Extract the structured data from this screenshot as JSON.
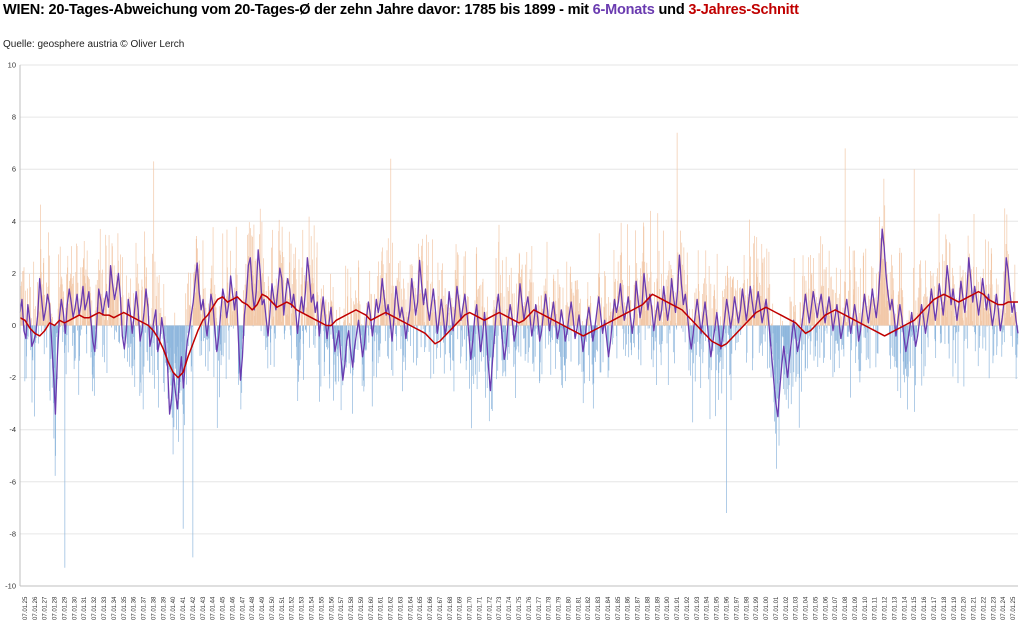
{
  "title": {
    "part1": "WIEN: 20-Tages-Abweichung vom 20-Tages-Ø der zehn Jahre davor: 1785 bis 1899 - mit ",
    "part2": "6-Monats",
    "part3": " und ",
    "part4": "3-Jahres-Schnitt"
  },
  "source": "Quelle: geosphere austria © Oliver Lerch",
  "colors": {
    "positive_bars": "#f2c8a8",
    "negative_bars": "#8fb7dd",
    "six_month_line": "#6a3bb0",
    "three_year_line": "#c00000",
    "grid": "#e6e6e6"
  },
  "chart_data": {
    "type": "bar",
    "title": "WIEN: 20-Tages-Abweichung vom 20-Tages-Ø der zehn Jahre davor: 1785 bis 1899 - mit 6-Monats und 3-Jahres-Schnitt",
    "ylim": [
      -10,
      10
    ],
    "yticks": [
      10,
      8,
      6,
      4,
      2,
      0,
      -2,
      -4,
      -6,
      -8,
      -10
    ],
    "grid": true,
    "x_labels": [
      "07.01.25",
      "07.01.26",
      "07.01.27",
      "07.01.28",
      "07.01.29",
      "07.01.30",
      "07.01.31",
      "07.01.32",
      "07.01.33",
      "07.01.34",
      "07.01.35",
      "07.01.36",
      "07.01.37",
      "07.01.38",
      "07.01.39",
      "07.01.40",
      "07.01.41",
      "07.01.42",
      "07.01.43",
      "07.01.44",
      "07.01.45",
      "07.01.46",
      "07.01.47",
      "07.01.48",
      "07.01.49",
      "07.01.50",
      "07.01.51",
      "07.01.52",
      "07.01.53",
      "07.01.54",
      "07.01.55",
      "07.01.56",
      "07.01.57",
      "07.01.58",
      "07.01.59",
      "07.01.60",
      "07.01.61",
      "07.01.62",
      "07.01.63",
      "07.01.64",
      "07.01.65",
      "07.01.66",
      "07.01.67",
      "07.01.68",
      "07.01.69",
      "07.01.70",
      "07.01.71",
      "07.01.72",
      "07.01.73",
      "07.01.74",
      "07.01.75",
      "07.01.76",
      "07.01.77",
      "07.01.78",
      "07.01.79",
      "07.01.80",
      "07.01.81",
      "07.01.82",
      "07.01.83",
      "07.01.84",
      "07.01.85",
      "07.01.86",
      "07.01.87",
      "07.01.88",
      "07.01.89",
      "07.01.90",
      "07.01.91",
      "07.01.92",
      "07.01.93",
      "07.01.94",
      "07.01.95",
      "07.01.96",
      "07.01.97",
      "07.01.98",
      "07.01.99",
      "07.01.00",
      "07.01.01",
      "07.01.02",
      "07.01.03",
      "07.01.04",
      "07.01.05",
      "07.01.06",
      "07.01.07",
      "07.01.08",
      "07.01.09",
      "07.01.10",
      "07.01.11",
      "07.01.12",
      "07.01.13",
      "07.01.14",
      "07.01.15",
      "07.01.16",
      "07.01.17",
      "07.01.18",
      "07.01.19",
      "07.01.20",
      "07.01.21",
      "07.01.22",
      "07.01.23",
      "07.01.24",
      "07.01.25"
    ],
    "series": [
      {
        "name": "6-Monats",
        "type": "line",
        "values": [
          0.5,
          1.0,
          -0.2,
          -0.5,
          0.8,
          0.2,
          -0.8,
          -0.6,
          -0.3,
          0.4,
          1.8,
          1.0,
          0.2,
          0.6,
          1.2,
          0.8,
          -0.5,
          -1.8,
          -3.4,
          -1.2,
          0.3,
          1.0,
          0.5,
          -0.3,
          0.8,
          1.4,
          0.9,
          0.3,
          0.7,
          1.2,
          0.4,
          0.8,
          1.5,
          0.6,
          0.9,
          1.3,
          0.2,
          -0.6,
          -1.0,
          0.1,
          1.4,
          1.0,
          0.4,
          0.9,
          1.3,
          0.7,
          2.3,
          1.6,
          1.0,
          1.4,
          2.0,
          1.1,
          -0.4,
          -0.9,
          -0.2,
          1.0,
          0.5,
          -0.3,
          0.4,
          1.3,
          0.6,
          -0.6,
          -0.2,
          0.5,
          1.4,
          0.7,
          -0.8,
          -0.4,
          0.2,
          0.6,
          -1.0,
          -0.6,
          0.3,
          -0.3,
          -0.9,
          -1.6,
          -3.4,
          -2.8,
          -1.8,
          -2.6,
          -3.2,
          -2.0,
          -1.2,
          -2.4,
          -1.4,
          -0.6,
          -0.2,
          0.4,
          0.9,
          1.7,
          2.4,
          1.3,
          0.6,
          1.0,
          0.2,
          -0.4,
          0.3,
          1.2,
          0.8,
          -0.2,
          -1.0,
          -0.4,
          0.5,
          1.4,
          1.0,
          0.3,
          0.8,
          1.9,
          1.2,
          0.6,
          1.3,
          -0.6,
          -2.1,
          -1.2,
          0.4,
          1.1,
          2.3,
          2.6,
          1.4,
          0.6,
          1.3,
          2.9,
          2.1,
          0.8,
          1.0,
          0.3,
          -0.4,
          0.5,
          1.6,
          1.0,
          0.6,
          1.4,
          2.2,
          1.8,
          0.4,
          1.2,
          1.8,
          1.4,
          0.7,
          1.2,
          0.6,
          -0.3,
          0.5,
          1.1,
          0.5,
          1.3,
          2.6,
          1.9,
          0.9,
          1.2,
          0.5,
          0.9,
          -0.4,
          0.4,
          1.1,
          0.3,
          -0.5,
          0.1,
          0.7,
          -0.2,
          -1.0,
          -0.6,
          -0.2,
          -1.2,
          -2.1,
          -1.5,
          -0.6,
          -0.2,
          -1.0,
          -1.6,
          -0.8,
          -0.3,
          0.2,
          -0.5,
          -1.2,
          -0.7,
          0.3,
          0.9,
          0.4,
          -0.4,
          0.2,
          1.0,
          0.5,
          0.9,
          1.8,
          1.1,
          0.4,
          0.8,
          0.2,
          -0.6,
          0.3,
          1.5,
          0.9,
          0.3,
          0.7,
          0.2,
          -0.5,
          0.1,
          0.6,
          1.8,
          1.1,
          0.4,
          0.9,
          2.5,
          1.6,
          0.8,
          1.4,
          0.7,
          0.2,
          0.8,
          1.4,
          0.6,
          -0.3,
          0.3,
          1.0,
          0.4,
          -0.4,
          0.2,
          1.3,
          0.6,
          -0.2,
          0.5,
          1.5,
          0.9,
          0.2,
          0.7,
          1.2,
          0.5,
          -0.3,
          -1.3,
          -0.6,
          0.3,
          0.8,
          -0.2,
          -1.0,
          -0.4,
          0.5,
          -0.4,
          -1.6,
          -2.5,
          -1.4,
          -0.4,
          0.6,
          1.2,
          0.4,
          -0.5,
          -1.3,
          -0.8,
          0.2,
          0.8,
          0.3,
          -0.6,
          -0.2,
          0.6,
          1.6,
          0.9,
          0.2,
          0.7,
          1.1,
          0.4,
          -0.4,
          0.1,
          0.8,
          0.3,
          -0.6,
          -0.2,
          0.5,
          1.2,
          0.6,
          -0.2,
          0.4,
          0.9,
          0.2,
          -0.5,
          -0.1,
          0.6,
          0.1,
          -0.6,
          -0.2,
          0.4,
          0.9,
          0.3,
          -0.5,
          -0.1,
          0.4,
          -0.3,
          -1.0,
          -0.5,
          0.2,
          0.7,
          0.1,
          -0.6,
          -0.1,
          0.5,
          1.1,
          0.4,
          -0.3,
          0.2,
          -0.5,
          -1.2,
          -0.6,
          0.2,
          1.0,
          0.5,
          0.9,
          1.6,
          0.8,
          0.2,
          0.6,
          1.1,
          0.4,
          -0.3,
          0.3,
          1.7,
          1.0,
          0.3,
          0.8,
          2.0,
          1.3,
          0.6,
          1.2,
          0.6,
          -0.2,
          0.4,
          0.9,
          0.2,
          0.6,
          1.5,
          0.8,
          0.2,
          0.7,
          1.8,
          1.1,
          0.5,
          1.3,
          2.7,
          1.6,
          0.8,
          1.2,
          0.5,
          -0.4,
          -0.9,
          -0.3,
          0.4,
          1.0,
          0.4,
          -0.3,
          0.3,
          0.9,
          0.2,
          -0.6,
          -1.2,
          -0.6,
          -0.1,
          0.5,
          -0.2,
          -0.9,
          -0.4,
          0.3,
          1.0,
          0.5,
          -0.1,
          0.4,
          1.1,
          0.6,
          0.1,
          0.6,
          1.4,
          0.8,
          0.2,
          0.8,
          1.5,
          0.9,
          0.3,
          0.8,
          1.3,
          0.7,
          0.1,
          0.5,
          1.0,
          0.4,
          -0.4,
          -1.3,
          -2.2,
          -3.0,
          -3.5,
          -2.4,
          -1.5,
          -0.8,
          -1.4,
          -2.0,
          -1.2,
          -0.5,
          0.2,
          -0.4,
          -1.0,
          -0.6,
          -0.1,
          0.5,
          1.2,
          0.6,
          0.1,
          0.7,
          1.3,
          0.8,
          0.3,
          0.8,
          1.2,
          0.6,
          0.1,
          0.6,
          1.1,
          0.5,
          -0.2,
          0.3,
          0.8,
          0.2,
          -0.5,
          -0.1,
          0.5,
          1.0,
          0.4,
          -0.3,
          0.2,
          0.8,
          0.3,
          -0.6,
          -0.2,
          0.5,
          1.2,
          0.6,
          0.1,
          0.7,
          1.4,
          0.8,
          0.3,
          1.0,
          2.2,
          3.7,
          3.0,
          1.9,
          1.2,
          0.6,
          1.0,
          0.4,
          -0.4,
          0.2,
          0.8,
          0.3,
          -0.4,
          -1.0,
          -0.6,
          -0.1,
          0.5,
          -0.2,
          -0.8,
          -0.4,
          0.2,
          0.8,
          0.3,
          -0.3,
          0.2,
          0.7,
          1.4,
          0.8,
          0.2,
          0.8,
          1.6,
          1.0,
          0.4,
          1.2,
          2.3,
          1.6,
          0.8,
          1.4,
          0.8,
          0.2,
          0.8,
          1.7,
          1.1,
          0.5,
          1.3,
          2.6,
          1.8,
          0.9,
          1.5,
          1.0,
          0.4,
          1.0,
          1.8,
          1.2,
          0.6,
          1.2,
          0.6,
          0.0,
          0.5,
          1.2,
          0.6,
          -0.2,
          0.3,
          1.0,
          2.6,
          2.1,
          1.2,
          0.5,
          0.9,
          0.2,
          -0.3
        ]
      },
      {
        "name": "3-Jahres-Schnitt",
        "type": "line",
        "values": [
          0.3,
          0.2,
          -0.1,
          -0.3,
          -0.4,
          -0.2,
          0.1,
          0.0,
          0.2,
          0.1,
          0.2,
          0.3,
          0.4,
          0.3,
          0.3,
          0.4,
          0.5,
          0.4,
          0.4,
          0.3,
          0.4,
          0.5,
          0.4,
          0.3,
          0.2,
          0.1,
          0.0,
          -0.2,
          -0.5,
          -0.9,
          -1.4,
          -1.8,
          -2.0,
          -1.8,
          -1.2,
          -0.7,
          -0.2,
          0.2,
          0.4,
          0.7,
          1.0,
          1.1,
          0.9,
          1.0,
          1.1,
          0.9,
          0.8,
          0.6,
          0.8,
          1.2,
          1.1,
          0.9,
          0.7,
          0.8,
          0.9,
          0.8,
          0.6,
          0.5,
          0.4,
          0.3,
          0.2,
          0.1,
          0.0,
          0.0,
          0.2,
          0.3,
          0.4,
          0.5,
          0.6,
          0.5,
          0.4,
          0.2,
          0.3,
          0.4,
          0.5,
          0.4,
          0.3,
          0.2,
          0.1,
          0.0,
          -0.1,
          -0.2,
          -0.3,
          -0.5,
          -0.7,
          -0.6,
          -0.4,
          -0.2,
          0.0,
          0.2,
          0.4,
          0.5,
          0.4,
          0.3,
          0.2,
          0.3,
          0.4,
          0.5,
          0.4,
          0.3,
          0.2,
          0.1,
          0.2,
          0.4,
          0.6,
          0.5,
          0.4,
          0.3,
          0.2,
          0.1,
          0.0,
          -0.1,
          -0.2,
          -0.3,
          -0.4,
          -0.3,
          -0.2,
          -0.1,
          0.0,
          0.1,
          0.2,
          0.3,
          0.4,
          0.5,
          0.6,
          0.7,
          0.8,
          1.0,
          1.2,
          1.1,
          1.0,
          0.9,
          0.8,
          0.7,
          0.6,
          0.4,
          0.2,
          0.0,
          -0.2,
          -0.4,
          -0.6,
          -0.7,
          -0.8,
          -0.7,
          -0.5,
          -0.3,
          -0.1,
          0.1,
          0.3,
          0.5,
          0.6,
          0.7,
          0.6,
          0.5,
          0.4,
          0.3,
          0.2,
          0.1,
          -0.1,
          -0.3,
          -0.2,
          0.0,
          0.2,
          0.4,
          0.5,
          0.6,
          0.5,
          0.4,
          0.3,
          0.2,
          0.1,
          0.0,
          -0.1,
          -0.2,
          -0.3,
          -0.4,
          -0.3,
          -0.2,
          -0.1,
          0.0,
          0.1,
          0.2,
          0.4,
          0.6,
          0.8,
          1.0,
          1.1,
          1.2,
          1.1,
          1.0,
          0.9,
          1.0,
          1.1,
          1.2,
          1.3,
          1.2,
          1.0,
          0.9,
          0.8,
          0.8,
          0.9,
          0.9,
          0.9
        ]
      }
    ],
    "bars": {
      "name": "20-Tages-Abweichung",
      "peaks": [
        {
          "x_index": 4,
          "value": -9.3
        },
        {
          "x_index": 17,
          "value": -8.9
        },
        {
          "x_index": 16,
          "value": -7.8
        },
        {
          "x_index": 71,
          "value": -7.2
        },
        {
          "x_index": 66,
          "value": 7.4
        },
        {
          "x_index": 83,
          "value": 6.8
        },
        {
          "x_index": 13,
          "value": 6.3
        },
        {
          "x_index": 37,
          "value": 6.4
        },
        {
          "x_index": 90,
          "value": 6.0
        }
      ],
      "range": [
        -9.3,
        7.4
      ],
      "count": 2370
    }
  }
}
